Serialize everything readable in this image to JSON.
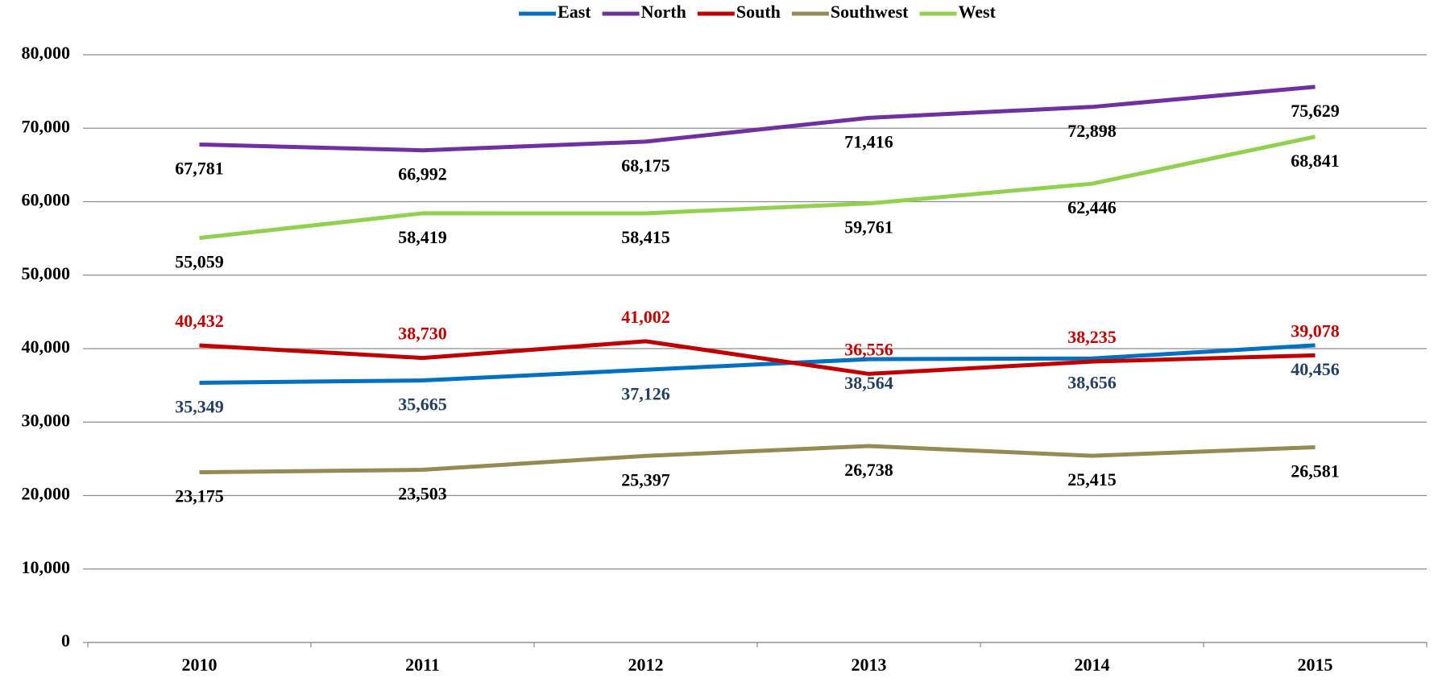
{
  "chart_data": {
    "type": "line",
    "categories": [
      "2010",
      "2011",
      "2012",
      "2013",
      "2014",
      "2015"
    ],
    "series": [
      {
        "name": "East",
        "color": "#0070c0",
        "label_color": "#243f60",
        "label_position": "below",
        "values": [
          35349,
          35665,
          37126,
          38564,
          38656,
          40456
        ],
        "value_labels": [
          "35,349",
          "35,665",
          "37,126",
          "38,564",
          "38,656",
          "40,456"
        ]
      },
      {
        "name": "North",
        "color": "#7030a0",
        "label_color": "#000000",
        "label_position": "below",
        "values": [
          67781,
          66992,
          68175,
          71416,
          72898,
          75629
        ],
        "value_labels": [
          "67,781",
          "66,992",
          "68,175",
          "71,416",
          "72,898",
          "75,629"
        ]
      },
      {
        "name": "South",
        "color": "#c00000",
        "label_color": "#c00000",
        "label_position": "above",
        "values": [
          40432,
          38730,
          41002,
          36556,
          38235,
          39078
        ],
        "value_labels": [
          "40,432",
          "38,730",
          "41,002",
          "36,556",
          "38,235",
          "39,078"
        ]
      },
      {
        "name": "Southwest",
        "color": "#948a54",
        "label_color": "#000000",
        "label_position": "below",
        "values": [
          23175,
          23503,
          25397,
          26738,
          25415,
          26581
        ],
        "value_labels": [
          "23,175",
          "23,503",
          "25,397",
          "26,738",
          "25,415",
          "26,581"
        ]
      },
      {
        "name": "West",
        "color": "#92d050",
        "label_color": "#000000",
        "label_position": "below",
        "values": [
          55059,
          58419,
          58415,
          59761,
          62446,
          68841
        ],
        "value_labels": [
          "55,059",
          "58,419",
          "58,415",
          "59,761",
          "62,446",
          "68,841"
        ]
      }
    ],
    "ylim": [
      0,
      80000
    ],
    "yticks": [
      {
        "value": 0,
        "label": "0"
      },
      {
        "value": 10000,
        "label": "10,000"
      },
      {
        "value": 20000,
        "label": "20,000"
      },
      {
        "value": 30000,
        "label": "30,000"
      },
      {
        "value": 40000,
        "label": "40,000"
      },
      {
        "value": 50000,
        "label": "50,000"
      },
      {
        "value": 60000,
        "label": "60,000"
      },
      {
        "value": 70000,
        "label": "70,000"
      },
      {
        "value": 80000,
        "label": "80,000"
      }
    ],
    "grid": true,
    "legend": "top"
  }
}
